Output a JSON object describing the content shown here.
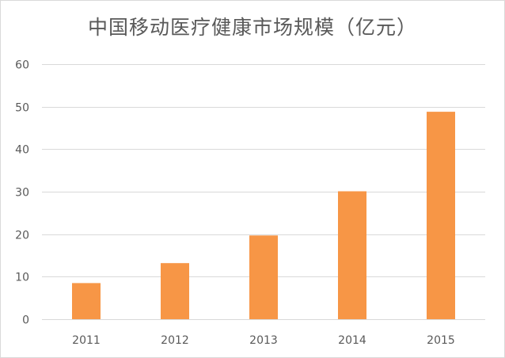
{
  "chart_data": {
    "type": "bar",
    "title": "中国移动医疗健康市场规模（亿元）",
    "xlabel": "",
    "ylabel": "",
    "categories": [
      "2011",
      "2012",
      "2013",
      "2014",
      "2015"
    ],
    "values": [
      8.5,
      13.2,
      19.7,
      30.1,
      48.8
    ],
    "ylim": [
      0,
      60
    ],
    "yticks": [
      "0",
      "10",
      "20",
      "30",
      "40",
      "50",
      "60"
    ],
    "grid": true,
    "legend": "none",
    "bar_color": "#f79646",
    "grid_color": "#d9d9d9",
    "text_color": "#595959"
  }
}
